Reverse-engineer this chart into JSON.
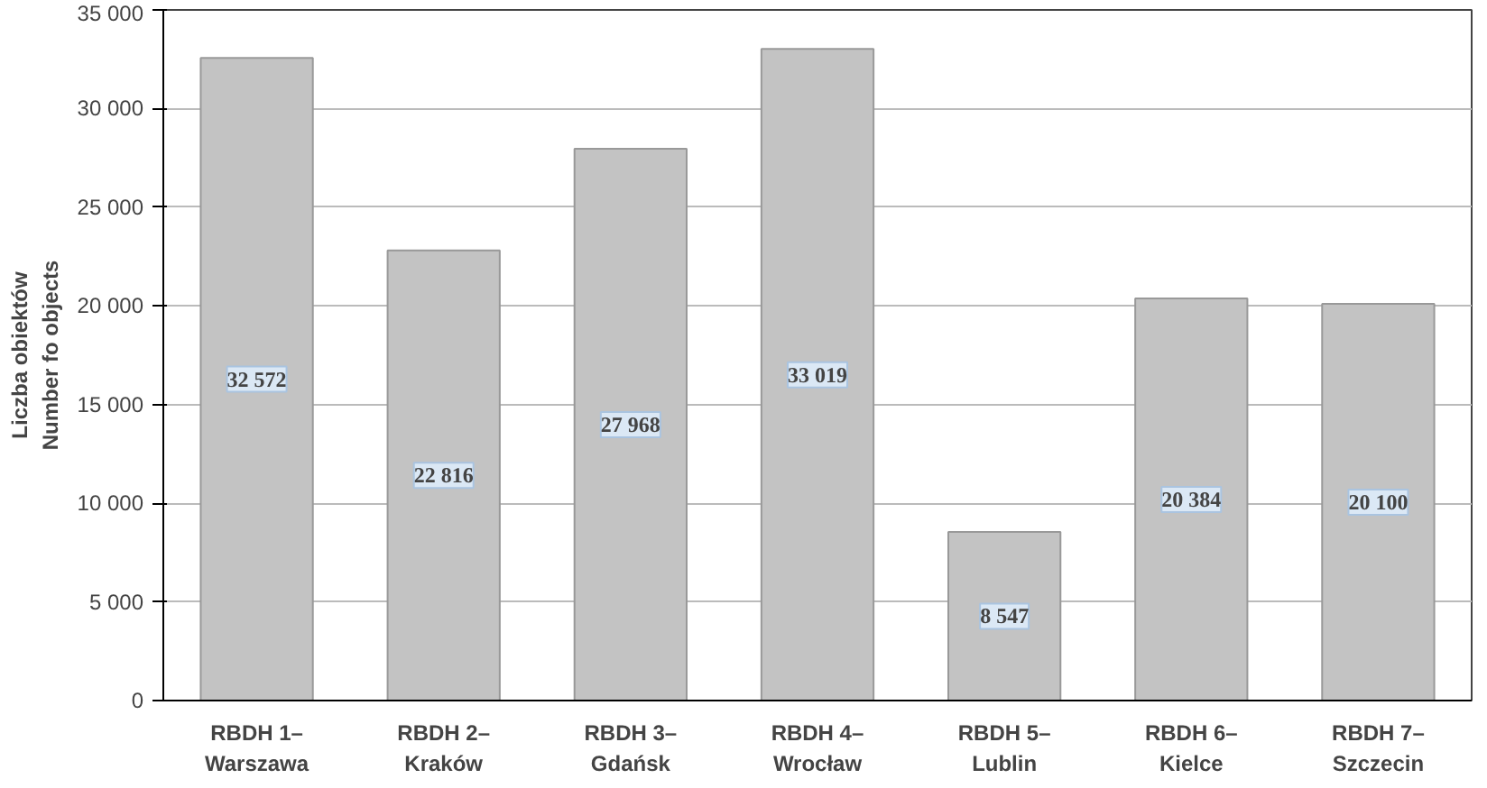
{
  "chart_data": {
    "type": "bar",
    "ylabel": "Liczba obiektów\nNumber fo objects",
    "categories": [
      "RBDH 1–\nWarszawa",
      "RBDH 2–\nKraków",
      "RBDH 3–\nGdańsk",
      "RBDH 4–\nWrocław",
      "RBDH 5–\nLublin",
      "RBDH 6–\nKielce",
      "RBDH 7–\nSzczecin"
    ],
    "values": [
      32572,
      22816,
      27968,
      33019,
      8547,
      20384,
      20100
    ],
    "value_labels": [
      "32 572",
      "22 816",
      "27 968",
      "33 019",
      "8 547",
      "20 384",
      "20 100"
    ],
    "color": "#c3c3c3",
    "ylim": [
      0,
      35000
    ],
    "yticks": [
      {
        "value": 0,
        "label": "0"
      },
      {
        "value": 5000,
        "label": "5 000"
      },
      {
        "value": 10000,
        "label": "10 000"
      },
      {
        "value": 15000,
        "label": "15 000"
      },
      {
        "value": 20000,
        "label": "20 000"
      },
      {
        "value": 25000,
        "label": "25 000"
      },
      {
        "value": 30000,
        "label": "30 000"
      },
      {
        "value": 35000,
        "label": "35 000"
      }
    ],
    "grid": "y"
  }
}
